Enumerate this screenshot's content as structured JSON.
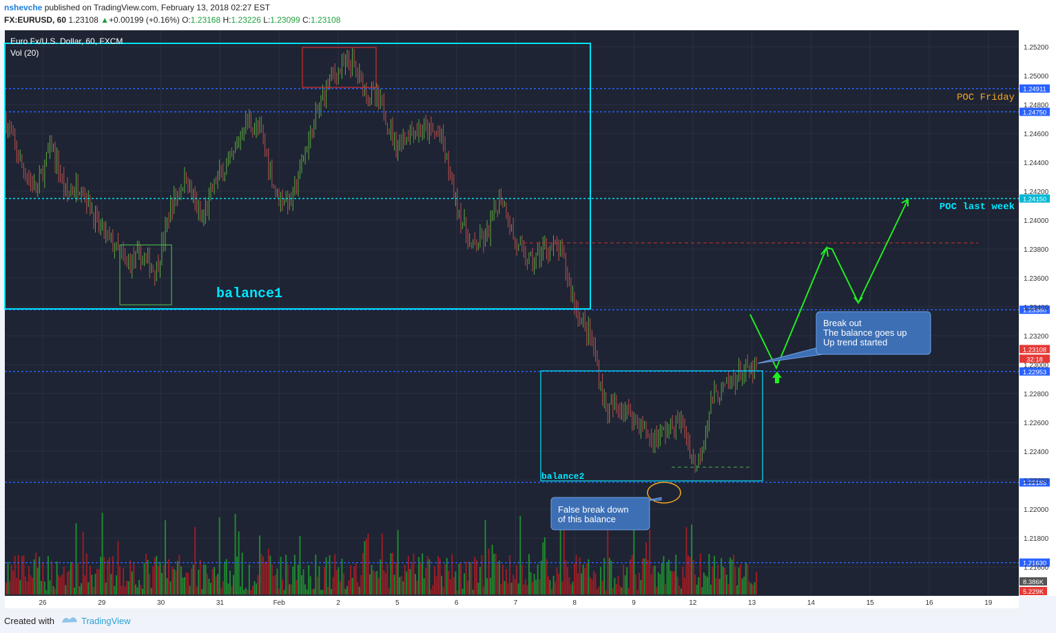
{
  "header": {
    "user": "nshevche",
    "published_text": "published on TradingView.com, February 13, 2018 02:27 EST",
    "symbol": "FX:EURUSD, 60",
    "last": "1.23108",
    "change": "+0.00199 (+0.16%)",
    "o_label": "O:",
    "o": "1.23168",
    "h_label": "H:",
    "h": "1.23226",
    "l_label": "L:",
    "l": "1.23099",
    "c_label": "C:",
    "c": "1.23108"
  },
  "legend": {
    "instrument": "Euro Fx/U.S. Dollar, 60, FXCM",
    "volume": "Vol (20)"
  },
  "footer": {
    "created_with": "Created with",
    "brand": "TradingView"
  },
  "chart_data": {
    "type": "candlestick",
    "symbol": "FX:EURUSD",
    "interval": "60",
    "ylim": [
      1.2139,
      1.2531
    ],
    "y_ticks": [
      "1.25200",
      "1.25000",
      "1.24800",
      "1.24600",
      "1.24400",
      "1.24200",
      "1.24000",
      "1.23800",
      "1.23600",
      "1.23400",
      "1.23200",
      "1.23000",
      "1.22800",
      "1.22600",
      "1.22400",
      "1.22200",
      "1.22000",
      "1.21800",
      "1.21600"
    ],
    "x_ticks": [
      "26",
      "29",
      "30",
      "31",
      "Feb",
      "2",
      "5",
      "6",
      "7",
      "8",
      "9",
      "12",
      "13",
      "14",
      "15",
      "16",
      "19"
    ],
    "price_close_path": [
      [
        0,
        1.2468
      ],
      [
        0.02,
        1.2438
      ],
      [
        0.04,
        1.242
      ],
      [
        0.06,
        1.2452
      ],
      [
        0.08,
        1.2418
      ],
      [
        0.1,
        1.2425
      ],
      [
        0.12,
        1.2398
      ],
      [
        0.14,
        1.2385
      ],
      [
        0.16,
        1.237
      ],
      [
        0.18,
        1.2375
      ],
      [
        0.2,
        1.2365
      ],
      [
        0.22,
        1.241
      ],
      [
        0.24,
        1.243
      ],
      [
        0.26,
        1.2398
      ],
      [
        0.28,
        1.2428
      ],
      [
        0.3,
        1.244
      ],
      [
        0.32,
        1.247
      ],
      [
        0.34,
        1.246
      ],
      [
        0.36,
        1.2418
      ],
      [
        0.38,
        1.2412
      ],
      [
        0.4,
        1.245
      ],
      [
        0.43,
        1.2498
      ],
      [
        0.46,
        1.251
      ],
      [
        0.48,
        1.249
      ],
      [
        0.5,
        1.248
      ],
      [
        0.52,
        1.2452
      ],
      [
        0.54,
        1.2462
      ],
      [
        0.56,
        1.2462
      ],
      [
        0.58,
        1.2458
      ],
      [
        0.6,
        1.2412
      ],
      [
        0.62,
        1.238
      ],
      [
        0.64,
        1.2388
      ],
      [
        0.66,
        1.2418
      ],
      [
        0.68,
        1.2382
      ],
      [
        0.7,
        1.237
      ],
      [
        0.72,
        1.2382
      ],
      [
        0.74,
        1.2378
      ],
      [
        0.76,
        1.2338
      ],
      [
        0.78,
        1.2318
      ],
      [
        0.8,
        1.2268
      ],
      [
        0.82,
        1.2272
      ],
      [
        0.84,
        1.2262
      ],
      [
        0.86,
        1.2248
      ],
      [
        0.88,
        1.2255
      ],
      [
        0.9,
        1.226
      ],
      [
        0.92,
        1.2228
      ],
      [
        0.94,
        1.2275
      ],
      [
        0.96,
        1.2285
      ],
      [
        0.98,
        1.2295
      ]
    ],
    "last_price": 1.23108,
    "levels": [
      {
        "value": 1.24911,
        "label": "1.24911",
        "color": "#2962ff",
        "style": "dotted"
      },
      {
        "value": 1.2475,
        "label": "1.24750",
        "color": "#2962ff",
        "style": "dotted"
      },
      {
        "value": 1.2415,
        "label": "1.24150",
        "color": "#00e5ff",
        "style": "dotted"
      },
      {
        "value": 1.2338,
        "label": "1.23380",
        "color": "#2962ff",
        "style": "dotted"
      },
      {
        "value": 1.22953,
        "label": "1.22953",
        "color": "#2962ff",
        "style": "dotted"
      },
      {
        "value": 1.22185,
        "label": "1.22185",
        "color": "#2962ff",
        "style": "dotted"
      },
      {
        "value": 1.2163,
        "label": "1.21630",
        "color": "#2962ff",
        "style": "dotted"
      }
    ],
    "price_badges": [
      {
        "label": "1.23108",
        "color": "#e53935"
      },
      {
        "label": "32:18",
        "color": "#e53935"
      }
    ],
    "volume_badges": [
      {
        "label": "8.386K",
        "color": "#555555"
      },
      {
        "label": "5.229K",
        "color": "#e53935"
      }
    ],
    "annotations": {
      "poc_friday": "POC Friday",
      "poc_last_week": "POC last week",
      "balance1": "balance1",
      "balance2": "balance2",
      "callout_breakout": [
        "Break out",
        "The balance goes up",
        "Up trend started"
      ],
      "callout_false_break": [
        "False break down",
        "of this balance"
      ]
    },
    "colors": {
      "background": "#1e2433",
      "up": "#5fae3e",
      "down": "#c0504d",
      "volume_up": "#1f8a2f",
      "volume_down": "#9b1d24",
      "balance_box": "#00e5ff",
      "projection": "#22ee22",
      "poc_friday": "#f5a623",
      "poc_last_week": "#00e5ff",
      "callout": "#3d6fb5"
    }
  }
}
